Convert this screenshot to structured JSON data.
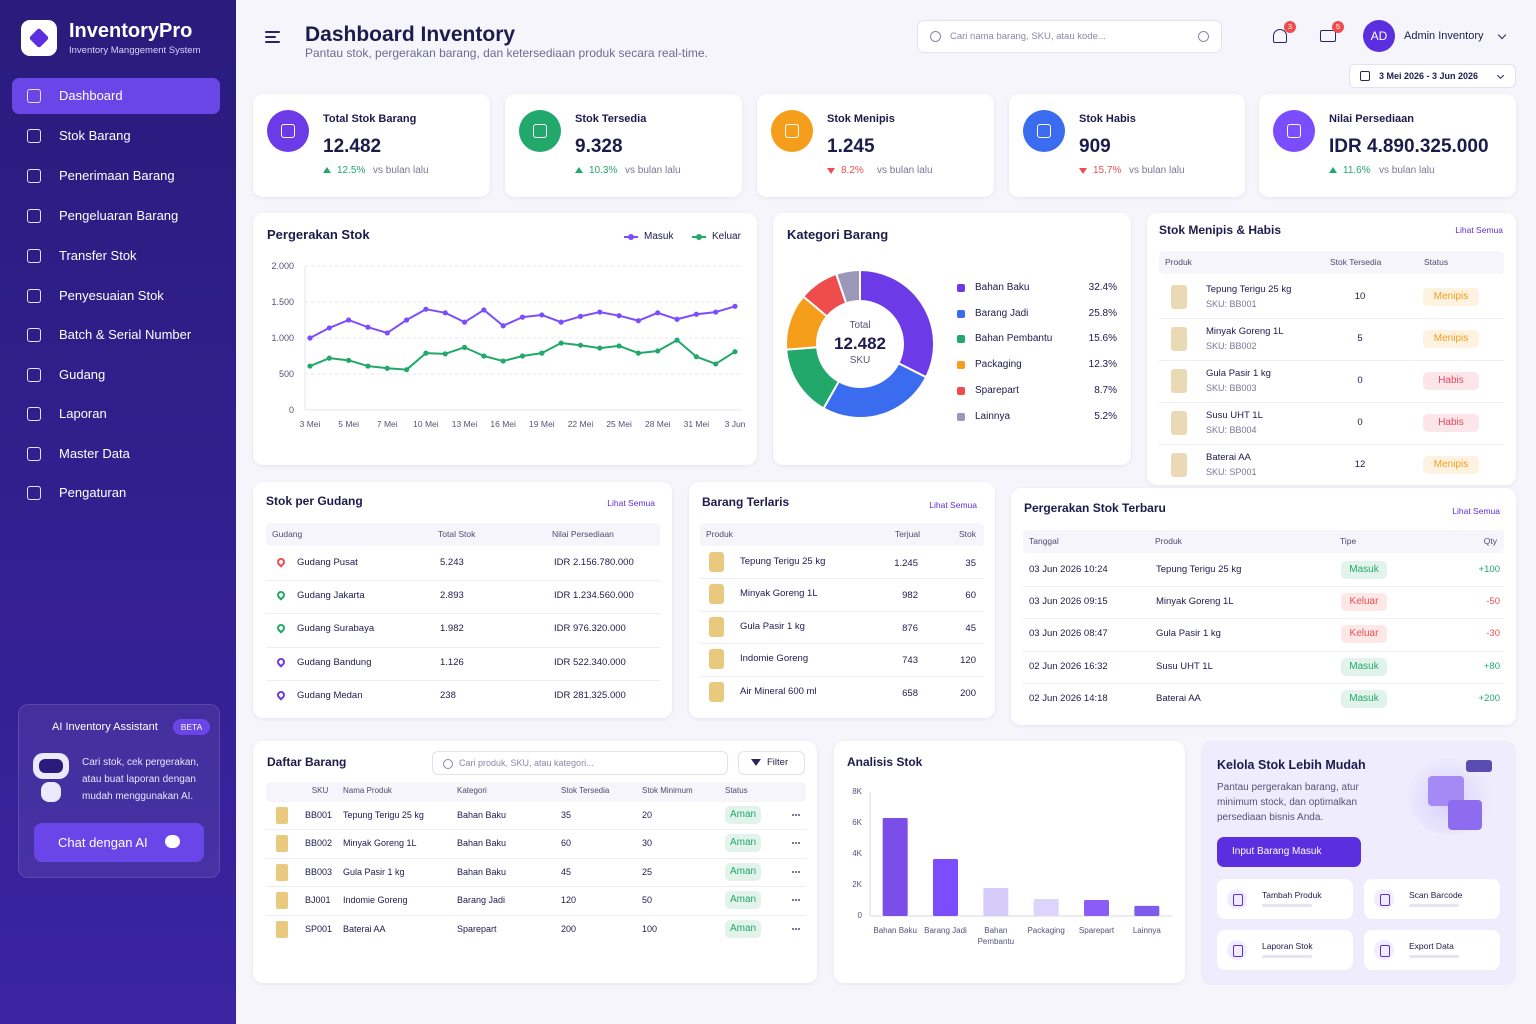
{
  "app": {
    "name": "InventoryPro",
    "subtitle": "Inventory Manggement System"
  },
  "nav": [
    "Dashboard",
    "Stok Barang",
    "Penerimaan Barang",
    "Pengeluaran Barang",
    "Transfer Stok",
    "Penyesuaian Stok",
    "Batch & Serial Number",
    "Gudang",
    "Laporan",
    "Master Data",
    "Pengaturan"
  ],
  "ai": {
    "title": "AI Inventory Assistant",
    "badge": "BETA",
    "text": "Cari stok, cek pergerakan, atau buat laporan dengan mudah menggunakan AI.",
    "button": "Chat dengan AI"
  },
  "header": {
    "title": "Dashboard Inventory",
    "subtitle": "Pantau stok, pergerakan barang, dan ketersediaan produk secara real-time.",
    "search": "Cari nama barang, SKU, atau kode...",
    "notifications": "3",
    "messages": "5",
    "avatar": "AD",
    "user": "Admin Inventory",
    "date_range": "3 Mei 2026 - 3 Jun 2026"
  },
  "kpis": [
    {
      "label": "Total Stok Barang",
      "value": "12.482",
      "change": "12.5%",
      "direction": "up",
      "note": "vs bulan lalu",
      "color": "#6d3ae8"
    },
    {
      "label": "Stok Tersedia",
      "value": "9.328",
      "change": "10.3%",
      "direction": "up",
      "note": "vs bulan lalu",
      "color": "#22a86b"
    },
    {
      "label": "Stok Menipis",
      "value": "1.245",
      "change": "8.2%",
      "direction": "down",
      "note": "vs bulan lalu",
      "color": "#f59e1b"
    },
    {
      "label": "Stok Habis",
      "value": "909",
      "change": "15.7%",
      "direction": "down",
      "note": "vs bulan lalu",
      "color": "#3b6cf0"
    },
    {
      "label": "Nilai Persediaan",
      "value": "IDR 4.890.325.000",
      "change": "11.6%",
      "direction": "up",
      "note": "vs bulan lalu",
      "color": "#7c4dff"
    }
  ],
  "stock_movement": {
    "type": "line",
    "title": "Pergerakan Stok",
    "categories": [
      "3 Mei",
      null,
      "5 Mei",
      null,
      "7 Mei",
      null,
      "10 Mei",
      null,
      "13 Mei",
      null,
      "16 Mei",
      null,
      "19 Mei",
      null,
      "22 Mei",
      null,
      "25 Mei",
      null,
      "28 Mei",
      null,
      "31 Mei",
      null,
      "3 Jun"
    ],
    "series": [
      {
        "name": "Masuk",
        "color": "#7c4dff",
        "values": [
          1000,
          1140,
          1250,
          1150,
          1070,
          1250,
          1400,
          1350,
          1220,
          1390,
          1170,
          1290,
          1320,
          1220,
          1300,
          1360,
          1310,
          1240,
          1350,
          1260,
          1330,
          1360,
          1440
        ]
      },
      {
        "name": "Keluar",
        "color": "#22a86b",
        "values": [
          610,
          720,
          690,
          610,
          580,
          560,
          790,
          780,
          870,
          750,
          680,
          750,
          790,
          930,
          900,
          860,
          890,
          790,
          820,
          970,
          740,
          640,
          810
        ]
      }
    ],
    "ylim": [
      0,
      2000
    ],
    "yticks": [
      0,
      500,
      {
        "value": 1000,
        "label": "1.000"
      },
      {
        "value": 1500,
        "label": "1.500"
      },
      {
        "value": 2000,
        "label": "2.000"
      }
    ],
    "grid": true
  },
  "categories_chart": {
    "type": "donut",
    "title": "Kategori Barang",
    "center_label": "Total",
    "center_value": "12.482",
    "center_unit": "SKU",
    "categories": [
      "Bahan Baku",
      "Barang Jadi",
      "Bahan Pembantu",
      "Packaging",
      "Sparepart",
      "Lainnya"
    ],
    "values": [
      32.4,
      25.8,
      15.6,
      12.3,
      8.7,
      5.2
    ],
    "value_labels": [
      "32.4%",
      "25.8%",
      "15.6%",
      "12.3%",
      "8.7%",
      "5.2%"
    ],
    "colors": [
      "#6d3ae8",
      "#3b6cf0",
      "#22a86b",
      "#f59e1b",
      "#ef4d4d",
      "#9b97b8"
    ]
  },
  "low_stock": {
    "title": "Stok Menipis & Habis",
    "link": "Lihat Semua",
    "columns": [
      "Produk",
      "Stok Tersedia",
      "Status"
    ],
    "rows": [
      {
        "cells": [
          "Tepung Terigu 25 kg",
          "SKU: BB001",
          "10",
          "Menipis"
        ],
        "color": "#f59e1b"
      },
      {
        "cells": [
          "Minyak Goreng 1L",
          "SKU: BB002",
          "5",
          "Menipis"
        ],
        "color": "#f59e1b"
      },
      {
        "cells": [
          "Gula Pasir 1 kg",
          "SKU: BB003",
          "0",
          "Habis"
        ],
        "color": "#e5475d"
      },
      {
        "cells": [
          "Susu UHT 1L",
          "SKU: BB004",
          "0",
          "Habis"
        ],
        "color": "#e5475d"
      },
      {
        "cells": [
          "Baterai AA",
          "SKU: SP001",
          "12",
          "Menipis"
        ],
        "color": "#f59e1b"
      }
    ]
  },
  "warehouses": {
    "title": "Stok per Gudang",
    "link": "Lihat Semua",
    "columns": [
      "Gudang",
      "Total Stok",
      "Nilai Persediaan"
    ],
    "rows": [
      {
        "cells": [
          "Gudang Pusat",
          "5.243",
          "IDR 2.156.780.000"
        ],
        "color": "#ef4d4d"
      },
      {
        "cells": [
          "Gudang Jakarta",
          "2.893",
          "IDR 1.234.560.000"
        ],
        "color": "#22a86b"
      },
      {
        "cells": [
          "Gudang Surabaya",
          "1.982",
          "IDR 976.320.000"
        ],
        "color": "#22a86b"
      },
      {
        "cells": [
          "Gudang Bandung",
          "1.126",
          "IDR 522.340.000"
        ],
        "color": "#6d3ae8"
      },
      {
        "cells": [
          "Gudang Medan",
          "238",
          "IDR 281.325.000"
        ],
        "color": "#6d3ae8"
      }
    ]
  },
  "best_sellers": {
    "title": "Barang Terlaris",
    "link": "Lihat Semua",
    "columns": [
      "Produk",
      "Terjual",
      "Stok"
    ],
    "rows": [
      [
        "Tepung Terigu 25 kg",
        "1.245",
        "35"
      ],
      [
        "Minyak Goreng 1L",
        "982",
        "60"
      ],
      [
        "Gula Pasir 1 kg",
        "876",
        "45"
      ],
      [
        "Indomie Goreng",
        "743",
        "120"
      ],
      [
        "Air Mineral 600 ml",
        "658",
        "200"
      ]
    ]
  },
  "movements": {
    "title": "Pergerakan Stok Terbaru",
    "link": "Lihat Semua",
    "columns": [
      "Tanggal",
      "Produk",
      "Tipe",
      "Qty"
    ],
    "rows": [
      {
        "cells": [
          "03 Jun 2026 10:24",
          "Tepung Terigu 25 kg",
          "Masuk",
          "+100"
        ],
        "color": "#22a86b"
      },
      {
        "cells": [
          "03 Jun 2026 09:15",
          "Minyak Goreng 1L",
          "Keluar",
          "-50"
        ],
        "color": "#ef4d4d"
      },
      {
        "cells": [
          "03 Jun 2026 08:47",
          "Gula Pasir 1 kg",
          "Keluar",
          "-30"
        ],
        "color": "#ef4d4d"
      },
      {
        "cells": [
          "02 Jun 2026 16:32",
          "Susu UHT 1L",
          "Masuk",
          "+80"
        ],
        "color": "#22a86b"
      },
      {
        "cells": [
          "02 Jun 2026 14:18",
          "Baterai AA",
          "Masuk",
          "+200"
        ],
        "color": "#22a86b"
      }
    ]
  },
  "items": {
    "title": "Daftar Barang",
    "search": "Cari produk, SKU, atau kategori...",
    "filter": "Filter",
    "columns": [
      "SKU",
      "Nama Produk",
      "Kategori",
      "Stok Tersedia",
      "Stok Minimum",
      "Status"
    ],
    "rows": [
      [
        "BB001",
        "Tepung Terigu 25 kg",
        "Bahan Baku",
        "35",
        "20",
        "Aman"
      ],
      [
        "BB002",
        "Minyak Goreng 1L",
        "Bahan Baku",
        "60",
        "30",
        "Aman"
      ],
      [
        "BB003",
        "Gula Pasir 1 kg",
        "Bahan Baku",
        "45",
        "25",
        "Aman"
      ],
      [
        "BJ001",
        "Indomie Goreng",
        "Barang Jadi",
        "120",
        "50",
        "Aman"
      ],
      [
        "SP001",
        "Baterai AA",
        "Sparepart",
        "200",
        "100",
        "Aman"
      ]
    ]
  },
  "stock_analysis": {
    "type": "bar",
    "title": "Analisis Stok",
    "categories": [
      "Bahan Baku",
      "Barang Jadi",
      "Bahan Pembantu",
      "Packaging",
      "Sparepart",
      "Lainnya"
    ],
    "values": [
      6320,
      3680,
      1810,
      1100,
      1030,
      650
    ],
    "colors": [
      "#7b4ee8",
      "#7c4dff",
      "#d6ccfa",
      "#ddd3fb",
      "#8b5cf6",
      "#7c5ce8"
    ],
    "ylim": [
      0,
      8000
    ],
    "yticks": [
      0,
      {
        "value": 2000,
        "label": "2K"
      },
      {
        "value": 4000,
        "label": "4K"
      },
      {
        "value": 6000,
        "label": "6K"
      },
      {
        "value": 8000,
        "label": "8K"
      }
    ]
  },
  "promo": {
    "title": "Kelola Stok Lebih Mudah",
    "text": "Pantau pergerakan barang, atur minimum stock, dan optimalkan persediaan bisnis Anda.",
    "button": "Input Barang Masuk",
    "actions": [
      "Tambah Produk",
      "Scan Barcode",
      "Laporan Stok",
      "Export Data"
    ]
  }
}
